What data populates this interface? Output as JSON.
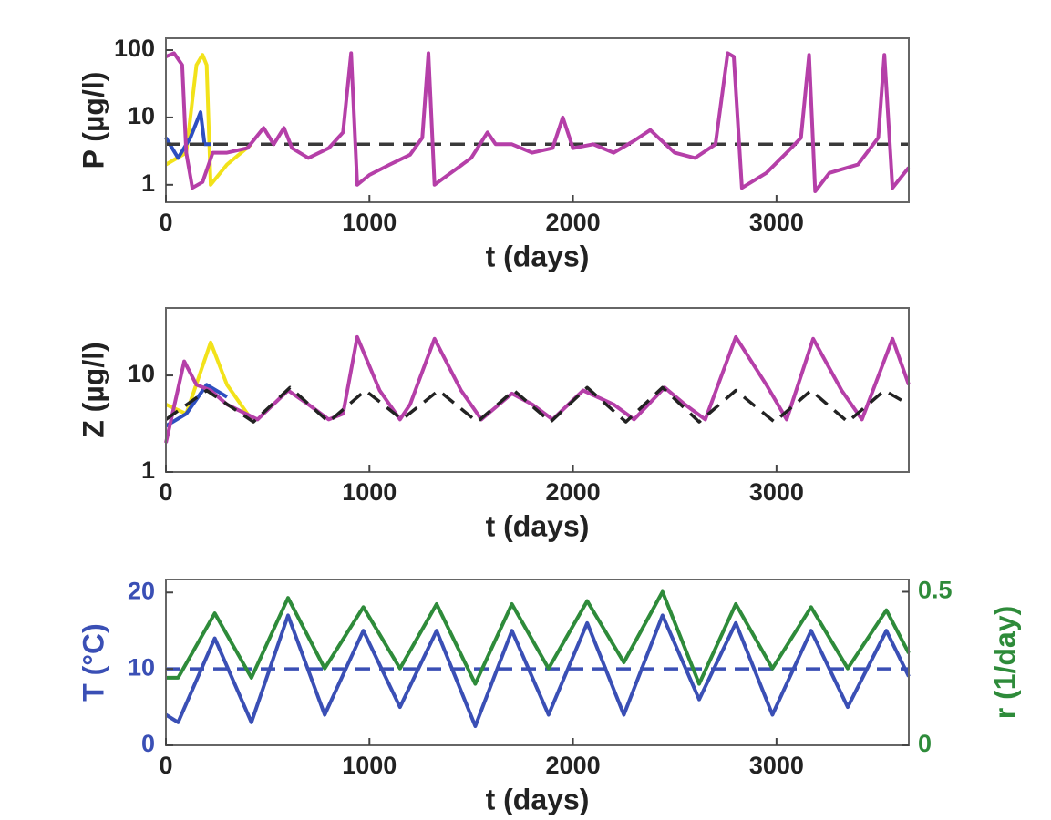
{
  "chart_data": [
    {
      "type": "line",
      "ylabel": "P (µg/l)",
      "xlabel": "t (days)",
      "xlim": [
        0,
        3650
      ],
      "xticks": [
        0,
        1000,
        2000,
        3000
      ],
      "ylim": [
        0.55,
        150
      ],
      "yticks": [
        1,
        10,
        100
      ],
      "ylog": true,
      "series": [
        {
          "color": "#f2e21a",
          "x": [
            0,
            100,
            150,
            180,
            200,
            220,
            300,
            420
          ],
          "values": [
            2,
            3,
            60,
            85,
            60,
            1,
            2,
            4
          ]
        },
        {
          "color": "#2e4fc0",
          "x": [
            0,
            60,
            120,
            170,
            190,
            220
          ],
          "values": [
            5,
            2.5,
            5,
            12,
            4,
            4
          ]
        },
        {
          "color": "#3a3a3a",
          "dash": true,
          "x": [
            0,
            3650
          ],
          "values": [
            4,
            4
          ]
        },
        {
          "color": "#b53fa8",
          "x": [
            0,
            40,
            80,
            100,
            130,
            180,
            230,
            300,
            400,
            480,
            530,
            580,
            620,
            700,
            800,
            870,
            910,
            940,
            1000,
            1100,
            1200,
            1260,
            1290,
            1320,
            1400,
            1500,
            1580,
            1620,
            1700,
            1800,
            1900,
            1950,
            2000,
            2100,
            2200,
            2300,
            2380,
            2420,
            2500,
            2600,
            2700,
            2760,
            2790,
            2830,
            2950,
            3050,
            3120,
            3160,
            3190,
            3260,
            3400,
            3500,
            3530,
            3570,
            3650
          ],
          "values": [
            80,
            90,
            60,
            3,
            0.9,
            1.1,
            3,
            3,
            3.5,
            7,
            4,
            7,
            3.5,
            2.5,
            3.5,
            6,
            90,
            1,
            1.4,
            2,
            2.8,
            5,
            90,
            1,
            1.5,
            2.5,
            6,
            4,
            4,
            3,
            3.5,
            10,
            3.5,
            4,
            3,
            4.5,
            6.5,
            5,
            3,
            2.5,
            4,
            90,
            80,
            0.9,
            1.5,
            3,
            5,
            85,
            0.8,
            1.5,
            2,
            5,
            85,
            0.9,
            1.8
          ]
        }
      ]
    },
    {
      "type": "line",
      "ylabel": "Z (µg/l)",
      "xlabel": "t (days)",
      "xlim": [
        0,
        3650
      ],
      "xticks": [
        0,
        1000,
        2000,
        3000
      ],
      "ylim": [
        1,
        50
      ],
      "yticks": [
        1,
        10
      ],
      "ylog": true,
      "series": [
        {
          "color": "#f2e21a",
          "x": [
            0,
            100,
            220,
            300,
            420
          ],
          "values": [
            5,
            4,
            22,
            8,
            3.5
          ]
        },
        {
          "color": "#2e4fc0",
          "x": [
            0,
            100,
            200,
            300
          ],
          "values": [
            3,
            4,
            8,
            6
          ]
        },
        {
          "color": "#b53fa8",
          "x": [
            0,
            90,
            150,
            220,
            300,
            450,
            600,
            700,
            800,
            870,
            940,
            1050,
            1150,
            1200,
            1320,
            1450,
            1550,
            1700,
            1800,
            1900,
            2050,
            2200,
            2300,
            2450,
            2550,
            2650,
            2800,
            2950,
            3050,
            3180,
            3320,
            3420,
            3570,
            3650
          ],
          "values": [
            2,
            14,
            8,
            7,
            5,
            3.5,
            7,
            5,
            3.5,
            4,
            25,
            7,
            3.5,
            5,
            24,
            7,
            3.5,
            6.5,
            5,
            3.5,
            7,
            5,
            3.5,
            7.5,
            5,
            3.5,
            25,
            8,
            3.5,
            24,
            7,
            3.5,
            24,
            8
          ]
        },
        {
          "color": "#222222",
          "dash": true,
          "x": [
            0,
            200,
            430,
            610,
            800,
            980,
            1160,
            1340,
            1530,
            1710,
            1890,
            2070,
            2260,
            2440,
            2620,
            2800,
            2990,
            3170,
            3350,
            3530,
            3650
          ],
          "values": [
            3.5,
            7,
            3.3,
            7.5,
            3.3,
            7,
            3.5,
            7,
            3.3,
            7,
            3.3,
            7.5,
            3.3,
            7.5,
            3.3,
            7,
            3.3,
            7,
            3.3,
            7,
            5
          ]
        }
      ]
    },
    {
      "type": "line",
      "ylabel": "T (°C)",
      "y2label": "r (1/day)",
      "xlabel": "t (days)",
      "xlim": [
        0,
        3650
      ],
      "xticks": [
        0,
        1000,
        2000,
        3000
      ],
      "ylim": [
        0,
        21.7
      ],
      "yticks": [
        0,
        10,
        20
      ],
      "ycolor": "#3a4fb5",
      "y2lim": [
        0,
        0.54
      ],
      "y2ticks": [
        0,
        0.5
      ],
      "y2color": "#2e8b3a",
      "series": [
        {
          "color": "#3a4fb5",
          "dash": true,
          "x": [
            0,
            3650
          ],
          "values": [
            10,
            10
          ]
        },
        {
          "color": "#2e8b3a",
          "axis": "y2",
          "x": [
            0,
            60,
            240,
            420,
            600,
            780,
            970,
            1150,
            1330,
            1520,
            1700,
            1880,
            2070,
            2250,
            2440,
            2620,
            2800,
            2980,
            3170,
            3350,
            3540,
            3650
          ],
          "values": [
            0.22,
            0.22,
            0.43,
            0.22,
            0.48,
            0.25,
            0.45,
            0.25,
            0.46,
            0.2,
            0.46,
            0.25,
            0.47,
            0.27,
            0.5,
            0.2,
            0.46,
            0.25,
            0.45,
            0.25,
            0.44,
            0.3
          ]
        },
        {
          "color": "#3a4fb5",
          "x": [
            0,
            60,
            240,
            420,
            600,
            780,
            970,
            1150,
            1330,
            1520,
            1700,
            1880,
            2070,
            2250,
            2440,
            2620,
            2800,
            2980,
            3170,
            3350,
            3540,
            3650
          ],
          "values": [
            4,
            3,
            14,
            3,
            17,
            4,
            15,
            5,
            15,
            2.5,
            15,
            4,
            16,
            4,
            17,
            6,
            16,
            4,
            15,
            5,
            15,
            9
          ]
        }
      ]
    }
  ]
}
